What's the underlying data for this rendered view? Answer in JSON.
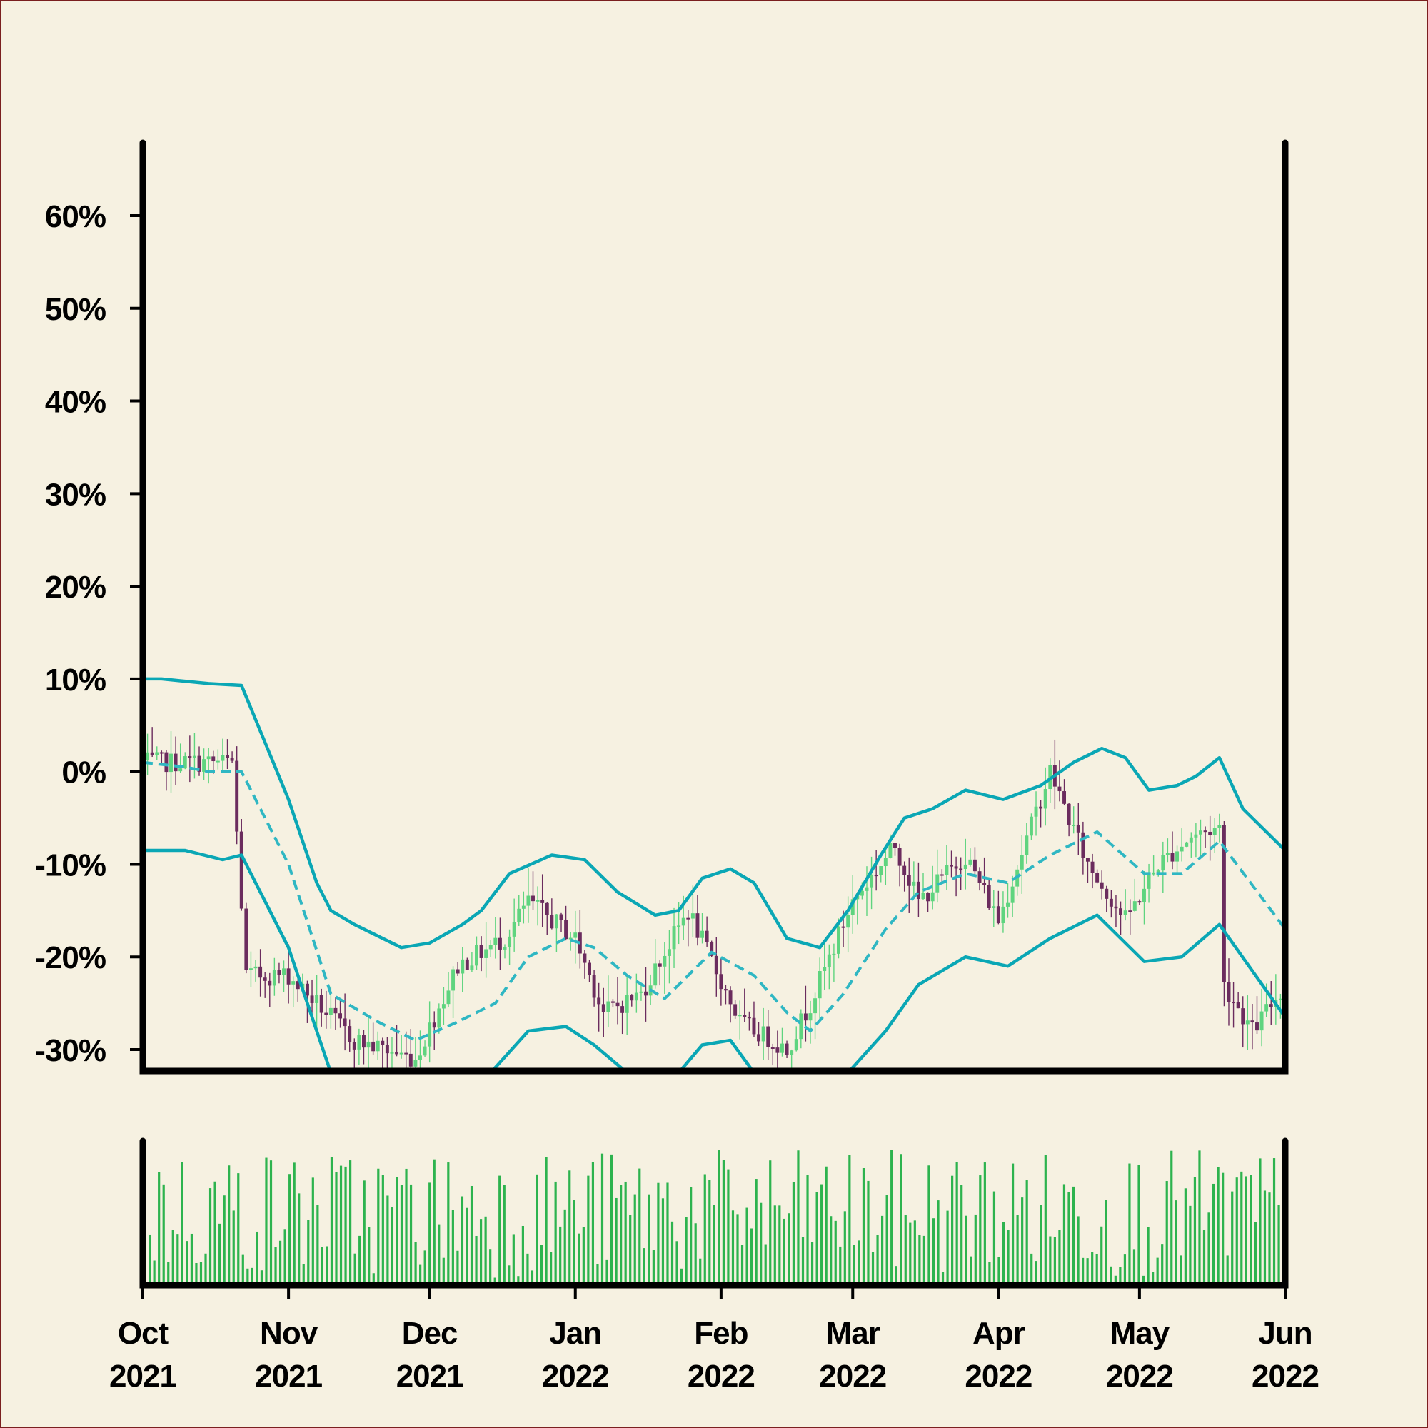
{
  "colors": {
    "background": "#f6f1e1",
    "up_candle": "#5fd47f",
    "down_candle": "#6b2c5e",
    "band": "#0aa7b5",
    "middle_band": "#2fb7c3",
    "volume": "#2db34e",
    "axis": "#000000"
  },
  "chart_data": {
    "type": "candlestick",
    "title": "",
    "y_axis": {
      "ticks": [
        "60%",
        "50%",
        "40%",
        "30%",
        "20%",
        "10%",
        "0%",
        "-10%",
        "-20%",
        "-30%"
      ],
      "tick_values": [
        60,
        50,
        40,
        30,
        20,
        10,
        0,
        -10,
        -20,
        -30
      ],
      "ylim": [
        -32.5,
        68
      ]
    },
    "x_axis": {
      "ticks": [
        {
          "month": "Oct",
          "year": "2021"
        },
        {
          "month": "Nov",
          "year": "2021"
        },
        {
          "month": "Dec",
          "year": "2021"
        },
        {
          "month": "Jan",
          "year": "2022"
        },
        {
          "month": "Feb",
          "year": "2022"
        },
        {
          "month": "Mar",
          "year": "2022"
        },
        {
          "month": "Apr",
          "year": "2022"
        },
        {
          "month": "May",
          "year": "2022"
        },
        {
          "month": "Jun",
          "year": "2022"
        }
      ],
      "tick_dates": [
        "2021-10-01",
        "2021-11-01",
        "2021-12-01",
        "2022-01-01",
        "2022-02-01",
        "2022-03-01",
        "2022-04-01",
        "2022-05-01",
        "2022-06-01"
      ],
      "xlim": [
        "2021-10-01",
        "2022-06-01"
      ]
    },
    "price_anchors": [
      {
        "date": "2021-10-01",
        "close": 1
      },
      {
        "date": "2021-10-20",
        "close": 1
      },
      {
        "date": "2021-10-23",
        "close": -22
      },
      {
        "date": "2021-11-01",
        "close": -22
      },
      {
        "date": "2021-11-15",
        "close": -29
      },
      {
        "date": "2021-11-28",
        "close": -31
      },
      {
        "date": "2021-12-07",
        "close": -21
      },
      {
        "date": "2021-12-17",
        "close": -18
      },
      {
        "date": "2021-12-22",
        "close": -14
      },
      {
        "date": "2022-01-01",
        "close": -18
      },
      {
        "date": "2022-01-07",
        "close": -26
      },
      {
        "date": "2022-01-15",
        "close": -24
      },
      {
        "date": "2022-01-25",
        "close": -15
      },
      {
        "date": "2022-02-05",
        "close": -27
      },
      {
        "date": "2022-02-15",
        "close": -30
      },
      {
        "date": "2022-02-20",
        "close": -25
      },
      {
        "date": "2022-03-01",
        "close": -14
      },
      {
        "date": "2022-03-10",
        "close": -8
      },
      {
        "date": "2022-03-15",
        "close": -14
      },
      {
        "date": "2022-03-25",
        "close": -9
      },
      {
        "date": "2022-04-01",
        "close": -16
      },
      {
        "date": "2022-04-12",
        "close": 0
      },
      {
        "date": "2022-04-20",
        "close": -10
      },
      {
        "date": "2022-04-28",
        "close": -16
      },
      {
        "date": "2022-05-05",
        "close": -10
      },
      {
        "date": "2022-05-12",
        "close": -7
      },
      {
        "date": "2022-05-18",
        "close": -6
      },
      {
        "date": "2022-05-19",
        "close": -23
      },
      {
        "date": "2022-05-25",
        "close": -28
      },
      {
        "date": "2022-06-01",
        "close": -23
      }
    ],
    "bands": {
      "upper": [
        {
          "date": "2021-10-01",
          "value": 10
        },
        {
          "date": "2021-10-05",
          "value": 10
        },
        {
          "date": "2021-10-15",
          "value": 9.5
        },
        {
          "date": "2021-10-22",
          "value": 9.3
        },
        {
          "date": "2021-11-01",
          "value": -3
        },
        {
          "date": "2021-11-07",
          "value": -12
        },
        {
          "date": "2021-11-10",
          "value": -15
        },
        {
          "date": "2021-11-15",
          "value": -16.5
        },
        {
          "date": "2021-11-25",
          "value": -19
        },
        {
          "date": "2021-12-01",
          "value": -18.5
        },
        {
          "date": "2021-12-08",
          "value": -16.5
        },
        {
          "date": "2021-12-12",
          "value": -15
        },
        {
          "date": "2021-12-18",
          "value": -11
        },
        {
          "date": "2021-12-27",
          "value": -9
        },
        {
          "date": "2022-01-03",
          "value": -9.5
        },
        {
          "date": "2022-01-10",
          "value": -13
        },
        {
          "date": "2022-01-18",
          "value": -15.5
        },
        {
          "date": "2022-01-23",
          "value": -15
        },
        {
          "date": "2022-01-28",
          "value": -11.5
        },
        {
          "date": "2022-02-03",
          "value": -10.5
        },
        {
          "date": "2022-02-08",
          "value": -12
        },
        {
          "date": "2022-02-15",
          "value": -18
        },
        {
          "date": "2022-02-22",
          "value": -19
        },
        {
          "date": "2022-02-28",
          "value": -15
        },
        {
          "date": "2022-03-07",
          "value": -9
        },
        {
          "date": "2022-03-12",
          "value": -5
        },
        {
          "date": "2022-03-18",
          "value": -4
        },
        {
          "date": "2022-03-25",
          "value": -2
        },
        {
          "date": "2022-04-02",
          "value": -3
        },
        {
          "date": "2022-04-10",
          "value": -1.5
        },
        {
          "date": "2022-04-17",
          "value": 1
        },
        {
          "date": "2022-04-23",
          "value": 2.5
        },
        {
          "date": "2022-04-28",
          "value": 1.5
        },
        {
          "date": "2022-05-03",
          "value": -2
        },
        {
          "date": "2022-05-09",
          "value": -1.5
        },
        {
          "date": "2022-05-13",
          "value": -0.5
        },
        {
          "date": "2022-05-18",
          "value": 1.5
        },
        {
          "date": "2022-05-23",
          "value": -4
        },
        {
          "date": "2022-06-01",
          "value": -8.5
        }
      ],
      "middle": [
        {
          "date": "2021-10-01",
          "value": 1
        },
        {
          "date": "2021-10-10",
          "value": 0.5
        },
        {
          "date": "2021-10-15",
          "value": 0
        },
        {
          "date": "2021-10-22",
          "value": 0
        },
        {
          "date": "2021-11-01",
          "value": -10
        },
        {
          "date": "2021-11-10",
          "value": -24
        },
        {
          "date": "2021-11-20",
          "value": -27
        },
        {
          "date": "2021-11-28",
          "value": -29
        },
        {
          "date": "2021-12-07",
          "value": -27
        },
        {
          "date": "2021-12-15",
          "value": -25
        },
        {
          "date": "2021-12-22",
          "value": -20
        },
        {
          "date": "2021-12-30",
          "value": -18
        },
        {
          "date": "2022-01-05",
          "value": -19
        },
        {
          "date": "2022-01-12",
          "value": -22
        },
        {
          "date": "2022-01-20",
          "value": -24.5
        },
        {
          "date": "2022-01-30",
          "value": -19.5
        },
        {
          "date": "2022-02-08",
          "value": -22
        },
        {
          "date": "2022-02-15",
          "value": -26
        },
        {
          "date": "2022-02-20",
          "value": -28
        },
        {
          "date": "2022-02-27",
          "value": -24
        },
        {
          "date": "2022-03-08",
          "value": -17
        },
        {
          "date": "2022-03-15",
          "value": -13
        },
        {
          "date": "2022-03-25",
          "value": -11
        },
        {
          "date": "2022-04-03",
          "value": -12
        },
        {
          "date": "2022-04-12",
          "value": -9
        },
        {
          "date": "2022-04-22",
          "value": -6.5
        },
        {
          "date": "2022-05-02",
          "value": -11
        },
        {
          "date": "2022-05-10",
          "value": -11
        },
        {
          "date": "2022-05-18",
          "value": -7.5
        },
        {
          "date": "2022-06-01",
          "value": -17
        }
      ],
      "lower": [
        {
          "date": "2021-10-01",
          "value": -8.5
        },
        {
          "date": "2021-10-10",
          "value": -8.5
        },
        {
          "date": "2021-10-18",
          "value": -9.5
        },
        {
          "date": "2021-10-22",
          "value": -9
        },
        {
          "date": "2021-11-01",
          "value": -19
        },
        {
          "date": "2021-11-10",
          "value": -32.5
        },
        {
          "date": "2021-12-14",
          "value": -32.5
        },
        {
          "date": "2021-12-22",
          "value": -28
        },
        {
          "date": "2021-12-30",
          "value": -27.5
        },
        {
          "date": "2022-01-05",
          "value": -29.5
        },
        {
          "date": "2022-01-12",
          "value": -32.5
        },
        {
          "date": "2022-01-23",
          "value": -32.5
        },
        {
          "date": "2022-01-28",
          "value": -29.5
        },
        {
          "date": "2022-02-03",
          "value": -29
        },
        {
          "date": "2022-02-08",
          "value": -32.5
        },
        {
          "date": "2022-02-28",
          "value": -32.5
        },
        {
          "date": "2022-03-08",
          "value": -28
        },
        {
          "date": "2022-03-15",
          "value": -23
        },
        {
          "date": "2022-03-25",
          "value": -20
        },
        {
          "date": "2022-04-03",
          "value": -21
        },
        {
          "date": "2022-04-12",
          "value": -18
        },
        {
          "date": "2022-04-22",
          "value": -15.5
        },
        {
          "date": "2022-05-02",
          "value": -20.5
        },
        {
          "date": "2022-05-10",
          "value": -20
        },
        {
          "date": "2022-05-18",
          "value": -16.5
        },
        {
          "date": "2022-06-01",
          "value": -26.5
        }
      ]
    },
    "volume": {
      "seed": 7,
      "count": 243
    },
    "legend": null,
    "grid": false
  }
}
